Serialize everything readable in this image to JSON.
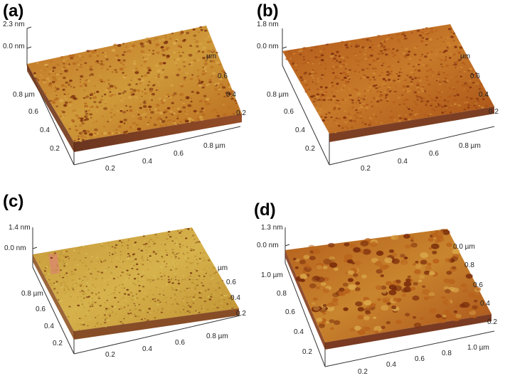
{
  "panels": [
    {
      "label": "(a)",
      "z_top": "2.3 nm",
      "z_zero": "0.0 nm",
      "left_axis": [
        "0.8 µm",
        "0.6",
        "0.4",
        "0.2"
      ],
      "bottom_axis": [
        "0.2",
        "0.4",
        "0.6",
        "0.8 µm"
      ],
      "right_axis": [
        "µm",
        "0.6",
        "0.4",
        "0.2"
      ],
      "colors": {
        "dark": "#7a2e0c",
        "mid": "#b86b1f",
        "light": "#d9a84a"
      }
    },
    {
      "label": "(b)",
      "z_top": "1.8 nm",
      "z_zero": "0.0 nm",
      "left_axis": [
        "0.8 µm",
        "0.6",
        "0.4",
        "0.2"
      ],
      "bottom_axis": [
        "0.2",
        "0.4",
        "0.6",
        "0.8 µm"
      ],
      "right_axis": [
        "µm",
        "0.6",
        "0.4",
        "0.2"
      ],
      "colors": {
        "dark": "#7f2f0d",
        "mid": "#b35a1a",
        "light": "#cf8a34"
      }
    },
    {
      "label": "(c)",
      "z_top": "1.4 nm",
      "z_zero": "0.0 nm",
      "left_axis": [
        "0.8 µm",
        "0.6",
        "0.4",
        "0.2"
      ],
      "bottom_axis": [
        "0.2",
        "0.4",
        "0.6",
        "0.8 µm"
      ],
      "right_axis": [
        "µm",
        "0.6",
        "0.4",
        "0.2"
      ],
      "colors": {
        "dark": "#7a3a10",
        "mid": "#b8902f",
        "light": "#d8c05a"
      }
    },
    {
      "label": "(d)",
      "z_top": "1.3 nm",
      "z_zero": "0.0 nm",
      "left_axis": [
        "1.0 µm",
        "0.8",
        "0.6",
        "0.4",
        "0.2"
      ],
      "bottom_axis": [
        "0.2",
        "0.4",
        "0.6",
        "0.8",
        "1.0 µm"
      ],
      "right_axis": [
        "0.0 µm",
        "0.8",
        "0.6",
        "0.4",
        "0.2"
      ],
      "colors": {
        "dark": "#7a2c0b",
        "mid": "#b8621b",
        "light": "#d9a548"
      }
    }
  ]
}
